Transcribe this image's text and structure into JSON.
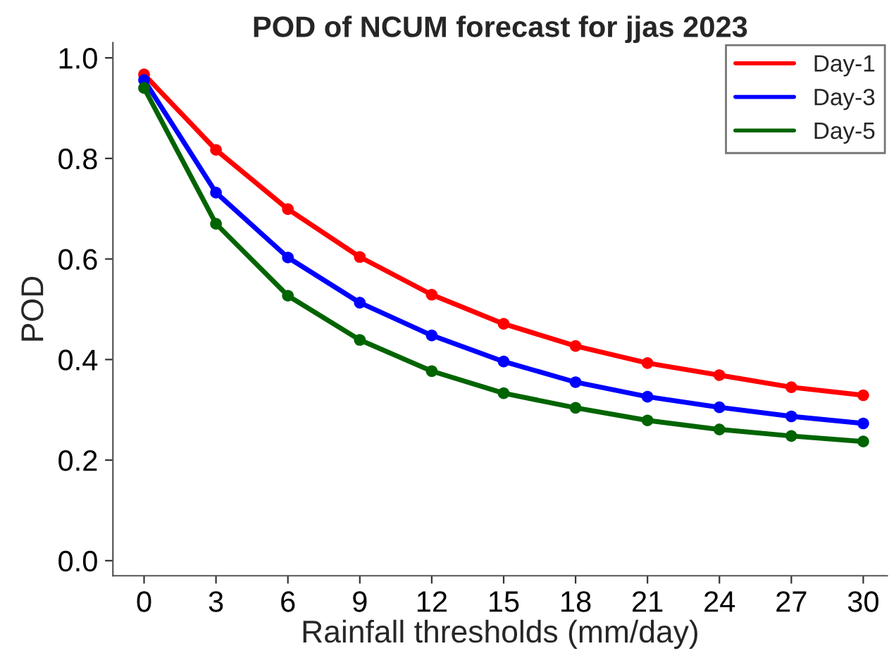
{
  "chart_data": {
    "type": "line",
    "title": "POD of NCUM forecast for jjas 2023",
    "xlabel": "Rainfall thresholds (mm/day)",
    "ylabel": "POD",
    "x": [
      0,
      3,
      6,
      9,
      12,
      15,
      18,
      21,
      24,
      27,
      30
    ],
    "series": [
      {
        "name": "Day-1",
        "color": "#ff0000",
        "values": [
          0.967,
          0.817,
          0.699,
          0.604,
          0.529,
          0.471,
          0.427,
          0.393,
          0.369,
          0.345,
          0.329
        ]
      },
      {
        "name": "Day-3",
        "color": "#0000ff",
        "values": [
          0.956,
          0.732,
          0.603,
          0.513,
          0.448,
          0.396,
          0.355,
          0.326,
          0.305,
          0.287,
          0.273
        ]
      },
      {
        "name": "Day-5",
        "color": "#006400",
        "values": [
          0.94,
          0.67,
          0.527,
          0.439,
          0.377,
          0.333,
          0.304,
          0.279,
          0.261,
          0.248,
          0.237
        ]
      }
    ],
    "xlim": [
      -1.3,
      31
    ],
    "ylim": [
      -0.03,
      1.03
    ],
    "xticks": [
      0,
      3,
      6,
      9,
      12,
      15,
      18,
      21,
      24,
      27,
      30
    ],
    "yticks": [
      {
        "value": 0,
        "label": "0.0"
      },
      {
        "value": 0.2,
        "label": "0.2"
      },
      {
        "value": 0.4,
        "label": "0.4"
      },
      {
        "value": 0.6,
        "label": "0.6"
      },
      {
        "value": 0.8,
        "label": "0.8"
      },
      {
        "value": 1.0,
        "label": "1.0"
      }
    ],
    "grid": false,
    "legend": "top right",
    "marker": "circle",
    "line_style": "solid"
  }
}
